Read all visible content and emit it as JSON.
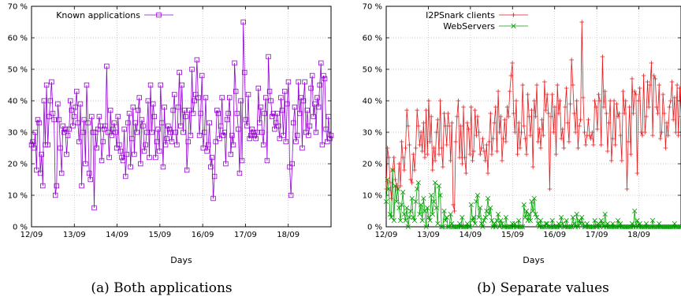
{
  "colors": {
    "known": "#9400d3",
    "i2psnark": "#e41a1c",
    "webservers": "#00a000"
  },
  "chart_data": [
    {
      "type": "line",
      "xlabel": "Days",
      "ylabel": "",
      "ylim": [
        0,
        70
      ],
      "xlim": [
        0,
        7
      ],
      "x_ticks": [
        "12/09",
        "13/09",
        "14/09",
        "15/09",
        "16/09",
        "17/09",
        "18/09"
      ],
      "y_ticks": [
        "0 %",
        "10 %",
        "20 %",
        "30 %",
        "40 %",
        "50 %",
        "60 %",
        "70 %"
      ],
      "legend": "top-left",
      "grid": true,
      "caption": "(a) Both applications",
      "series": [
        {
          "name": "Known applications",
          "marker": "square",
          "values": [
            26,
            27,
            25,
            30,
            18,
            34,
            33,
            17,
            23,
            13,
            40,
            26,
            45,
            26,
            35,
            40,
            46,
            36,
            34,
            10,
            13,
            39,
            34,
            25,
            17,
            32,
            30,
            31,
            23,
            29,
            31,
            40,
            37,
            32,
            35,
            38,
            43,
            33,
            27,
            39,
            13,
            30,
            34,
            20,
            45,
            33,
            17,
            15,
            35,
            30,
            6,
            30,
            25,
            31,
            35,
            32,
            21,
            27,
            31,
            32,
            51,
            30,
            22,
            37,
            29,
            31,
            33,
            30,
            25,
            35,
            26,
            24,
            22,
            21,
            31,
            16,
            23,
            33,
            36,
            19,
            28,
            38,
            23,
            33,
            30,
            37,
            41,
            20,
            34,
            32,
            24,
            26,
            30,
            40,
            22,
            45,
            30,
            39,
            35,
            22,
            27,
            31,
            24,
            45,
            33,
            19,
            38,
            26,
            28,
            32,
            31,
            30,
            27,
            37,
            42,
            30,
            26,
            38,
            49,
            32,
            45,
            30,
            37,
            35,
            18,
            27,
            37,
            29,
            50,
            36,
            40,
            42,
            53,
            41,
            29,
            36,
            48,
            25,
            30,
            41,
            24,
            26,
            33,
            19,
            22,
            9,
            16,
            27,
            37,
            36,
            28,
            32,
            41,
            29,
            30,
            20,
            34,
            36,
            41,
            23,
            29,
            26,
            52,
            43,
            36,
            31,
            17,
            40,
            21,
            65,
            49,
            34,
            32,
            42,
            28,
            29,
            31,
            30,
            29,
            28,
            30,
            44,
            33,
            38,
            30,
            26,
            36,
            41,
            21,
            54,
            43,
            40,
            35,
            36,
            31,
            33,
            36,
            32,
            28,
            41,
            37,
            29,
            43,
            27,
            39,
            46,
            19,
            10,
            20,
            33,
            38,
            27,
            29,
            46,
            36,
            41,
            25,
            40,
            46,
            30,
            37,
            29,
            32,
            44,
            48,
            35,
            39,
            30,
            41,
            38,
            45,
            52,
            26,
            48,
            47,
            31,
            27,
            35,
            28,
            29
          ],
          "ytick_count": 8
        }
      ]
    },
    {
      "type": "line",
      "xlabel": "Days",
      "ylabel": "",
      "ylim": [
        0,
        70
      ],
      "xlim": [
        0,
        7
      ],
      "x_ticks": [
        "12/09",
        "13/09",
        "14/09",
        "15/09",
        "16/09",
        "17/09",
        "18/09"
      ],
      "y_ticks": [
        "0 %",
        "10 %",
        "20 %",
        "30 %",
        "40 %",
        "50 %",
        "60 %",
        "70 %"
      ],
      "legend": "top-left",
      "grid": true,
      "caption": "(b) Separate values",
      "series": [
        {
          "name": "I2PSnark clients",
          "marker": "plus",
          "values": [
            12,
            25,
            22,
            14,
            9,
            18,
            22,
            15,
            13,
            12,
            20,
            13,
            27,
            22,
            18,
            25,
            37,
            32,
            26,
            15,
            14,
            23,
            18,
            25,
            37,
            32,
            26,
            30,
            24,
            33,
            22,
            37,
            23,
            40,
            27,
            35,
            18,
            25,
            21,
            30,
            34,
            23,
            40,
            25,
            19,
            36,
            32,
            26,
            36,
            32,
            21,
            33,
            7,
            5,
            27,
            35,
            40,
            22,
            32,
            20,
            38,
            22,
            17,
            33,
            31,
            23,
            38,
            21,
            24,
            37,
            29,
            35,
            30,
            23,
            25,
            28,
            24,
            21,
            26,
            17,
            27,
            36,
            23,
            28,
            33,
            38,
            24,
            43,
            30,
            35,
            21,
            28,
            34,
            27,
            38,
            35,
            43,
            48,
            52,
            36,
            30,
            40,
            23,
            33,
            25,
            30,
            45,
            32,
            28,
            23,
            42,
            35,
            29,
            37,
            19,
            40,
            35,
            45,
            27,
            31,
            25,
            34,
            29,
            46,
            37,
            42,
            36,
            12,
            35,
            42,
            30,
            38,
            23,
            45,
            36,
            40,
            28,
            31,
            25,
            38,
            44,
            33,
            27,
            39,
            53,
            45,
            36,
            30,
            40,
            25,
            32,
            34,
            65,
            41,
            30,
            26,
            29,
            34,
            29,
            28,
            30,
            26,
            40,
            38,
            31,
            42,
            40,
            26,
            54,
            38,
            43,
            36,
            24,
            33,
            40,
            21,
            28,
            40,
            26,
            39,
            35,
            36,
            29,
            21,
            43,
            36,
            40,
            12,
            27,
            38,
            23,
            47,
            36,
            43,
            42,
            17,
            40,
            44,
            30,
            29,
            48,
            30,
            35,
            46,
            38,
            45,
            52,
            29,
            48,
            47,
            38,
            36,
            45,
            28,
            30,
            42,
            36,
            25,
            33,
            29,
            38,
            40,
            46,
            34,
            41,
            30,
            45,
            29,
            44,
            35
          ],
          "ytick_count": 8
        },
        {
          "name": "WebServers",
          "marker": "x",
          "values": [
            8,
            15,
            12,
            4,
            3,
            18,
            2,
            13,
            8,
            12,
            6,
            2,
            7,
            11,
            4,
            2,
            6,
            0,
            3,
            5,
            9,
            3,
            2,
            8,
            12,
            14,
            4,
            7,
            2,
            9,
            5,
            0,
            6,
            3,
            2,
            10,
            4,
            8,
            14,
            6,
            1,
            13,
            10,
            0,
            0,
            5,
            2,
            3,
            0,
            0,
            4,
            1,
            0,
            0,
            0,
            0,
            0,
            1,
            0,
            3,
            0,
            0,
            0,
            1,
            0,
            0,
            7,
            2,
            3,
            1,
            8,
            10,
            3,
            6,
            1,
            0,
            2,
            3,
            5,
            9,
            4,
            6,
            2,
            0,
            1,
            0,
            2,
            4,
            0,
            2,
            1,
            0,
            0,
            3,
            0,
            0,
            0,
            0,
            1,
            0,
            1,
            0,
            0,
            2,
            0,
            0,
            0,
            7,
            3,
            5,
            2,
            4,
            2,
            8,
            5,
            9,
            4,
            3,
            1,
            0,
            2,
            0,
            0,
            0,
            1,
            1,
            0,
            0,
            0,
            2,
            0,
            0,
            0,
            0,
            1,
            0,
            3,
            1,
            0,
            0,
            2,
            0,
            0,
            0,
            0,
            3,
            1,
            0,
            4,
            0,
            2,
            1,
            3,
            1,
            0,
            0,
            1,
            0,
            0,
            0,
            0,
            0,
            2,
            0,
            0,
            1,
            0,
            2,
            1,
            0,
            4,
            0,
            1,
            0,
            0,
            0,
            1,
            0,
            0,
            0,
            2,
            0,
            1,
            0,
            0,
            0,
            0,
            0,
            0,
            0,
            0,
            1,
            0,
            5,
            0,
            2,
            0,
            1,
            0,
            0,
            0,
            0,
            1,
            0,
            0,
            0,
            0,
            2,
            0,
            0,
            0,
            0,
            1,
            0,
            0,
            0,
            0,
            0,
            0,
            0,
            0,
            0,
            0,
            0,
            1,
            0,
            0,
            0,
            0,
            0
          ],
          "ytick_count": 8
        }
      ]
    }
  ]
}
